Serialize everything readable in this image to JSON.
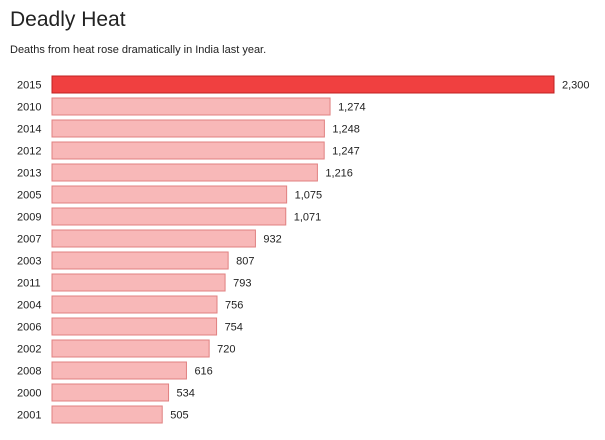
{
  "header": {
    "title": "Deadly Heat",
    "subtitle": "Deaths from heat rose dramatically in India last year."
  },
  "colors": {
    "highlight_fill": "#f04040",
    "highlight_stroke": "#c02020",
    "bar_fill": "#f8b8b8",
    "bar_stroke": "#e08080"
  },
  "chart_data": {
    "type": "bar",
    "orientation": "horizontal",
    "title": "Deadly Heat",
    "subtitle": "Deaths from heat rose dramatically in India last year.",
    "xlabel": "",
    "ylabel": "",
    "categories": [
      "2015",
      "2010",
      "2014",
      "2012",
      "2013",
      "2005",
      "2009",
      "2007",
      "2003",
      "2011",
      "2004",
      "2006",
      "2002",
      "2008",
      "2000",
      "2001"
    ],
    "values": [
      2300,
      1274,
      1248,
      1247,
      1216,
      1075,
      1071,
      932,
      807,
      793,
      756,
      754,
      720,
      616,
      534,
      505
    ],
    "value_labels": [
      "2,300",
      "1,274",
      "1,248",
      "1,247",
      "1,216",
      "1,075",
      "1,071",
      "932",
      "807",
      "793",
      "756",
      "754",
      "720",
      "616",
      "534",
      "505"
    ],
    "highlight": [
      "2015"
    ],
    "xlim": [
      0,
      2300
    ],
    "grid": false,
    "legend": "none"
  }
}
